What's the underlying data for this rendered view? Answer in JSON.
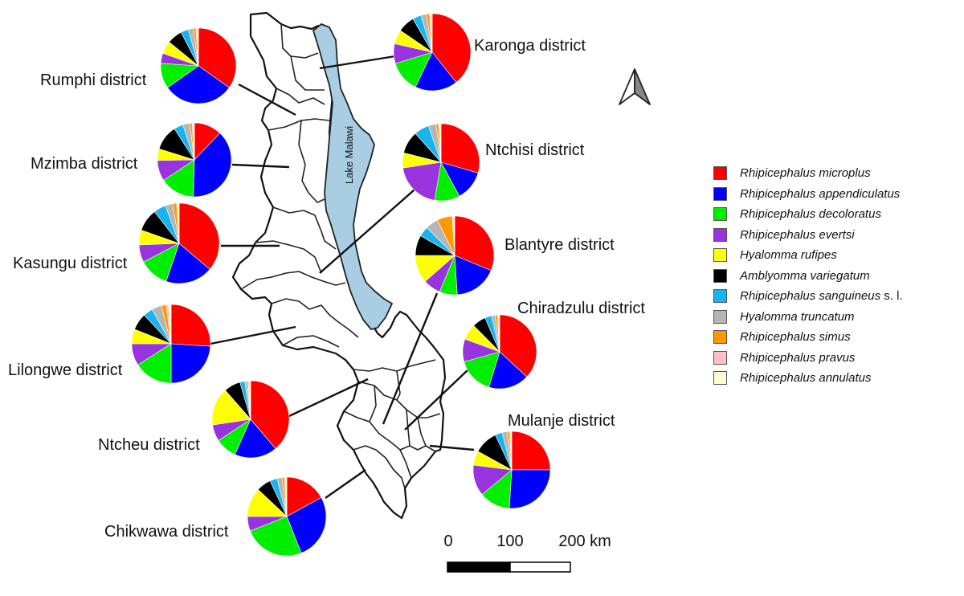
{
  "lake_label": "Lake Malawi",
  "scale_bar": {
    "labels": [
      "0",
      "100",
      "200 km"
    ]
  },
  "legend": [
    {
      "name": "Rhipicephalus microplus",
      "suffix": "",
      "color": "#ff0000"
    },
    {
      "name": "Rhipicephalus appendiculatus",
      "suffix": "",
      "color": "#0000ff"
    },
    {
      "name": "Rhipicephalus decoloratus",
      "suffix": "",
      "color": "#00ee00"
    },
    {
      "name": "Rhipicephalus evertsi",
      "suffix": "",
      "color": "#9933dd"
    },
    {
      "name": "Hyalomma rufipes",
      "suffix": "",
      "color": "#ffff00"
    },
    {
      "name": "Amblyomma variegatum",
      "suffix": "",
      "color": "#000000"
    },
    {
      "name": "Rhipicephalus sanguineus",
      "suffix": " s. l.",
      "color": "#19b4ee"
    },
    {
      "name": "Hyalomma truncatum",
      "suffix": "",
      "color": "#b5b5b5"
    },
    {
      "name": "Rhipicephalus simus",
      "suffix": "",
      "color": "#ff9900"
    },
    {
      "name": "Rhipicephalus pravus",
      "suffix": "",
      "color": "#ffbfc5"
    },
    {
      "name": "Rhipicephalus annulatus",
      "suffix": "",
      "color": "#fffbd0"
    }
  ],
  "chart_data": {
    "type": "pie",
    "categories": [
      "Rhipicephalus microplus",
      "Rhipicephalus appendiculatus",
      "Rhipicephalus decoloratus",
      "Rhipicephalus evertsi",
      "Hyalomma rufipes",
      "Amblyomma variegatum",
      "Rhipicephalus sanguineus s. l.",
      "Hyalomma truncatum",
      "Rhipicephalus simus",
      "Rhipicephalus pravus",
      "Rhipicephalus annulatus"
    ],
    "districts": [
      {
        "name": "Karonga district",
        "values": [
          33,
          15,
          11,
          7,
          5,
          6,
          3,
          2,
          1,
          0.5,
          0.5
        ]
      },
      {
        "name": "Rumphi district",
        "values": [
          32,
          28,
          10,
          4,
          5,
          6,
          3,
          2,
          1,
          0.5,
          0.5
        ]
      },
      {
        "name": "Ntchisi district",
        "values": [
          28,
          12,
          10,
          19,
          6,
          9,
          6,
          3,
          1,
          0.5,
          0.5
        ]
      },
      {
        "name": "Mzimba district",
        "values": [
          12,
          38,
          15,
          9,
          5,
          11,
          4,
          3,
          1,
          0.5,
          0.5
        ]
      },
      {
        "name": "Kasungu district",
        "values": [
          36,
          19,
          12,
          7,
          6,
          9,
          5,
          3,
          1.5,
          0.5,
          0.5
        ]
      },
      {
        "name": "Blantyre district",
        "values": [
          30,
          17,
          7,
          7,
          11,
          8,
          4,
          5,
          6,
          0.5,
          0.5
        ]
      },
      {
        "name": "Chiradzulu district",
        "values": [
          37,
          18,
          16,
          10,
          7,
          6,
          3,
          1.5,
          1,
          0.5,
          0.5
        ]
      },
      {
        "name": "Lilongwe district",
        "values": [
          26,
          24,
          16,
          9,
          6,
          7,
          4,
          4,
          2,
          1,
          1
        ]
      },
      {
        "name": "Ntcheu district",
        "values": [
          39,
          18,
          9,
          7,
          16,
          7,
          2,
          1,
          0.5,
          0.5,
          0.5
        ]
      },
      {
        "name": "Mulanje district",
        "values": [
          25,
          26,
          13,
          13,
          6,
          10,
          3,
          2,
          1,
          0.5,
          0.5
        ]
      },
      {
        "name": "Chikwawa district",
        "values": [
          17,
          27,
          25,
          6,
          12,
          6,
          3,
          2,
          1,
          0.5,
          0.5
        ]
      }
    ]
  }
}
